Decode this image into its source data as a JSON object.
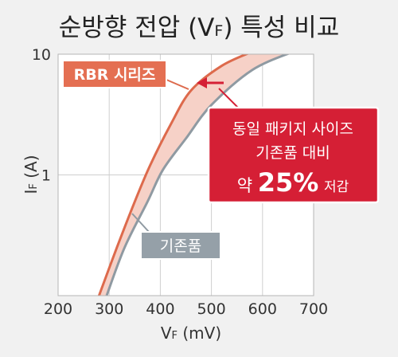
{
  "chart_data": {
    "type": "line",
    "title": "순방향 전압 (VF) 특성 비교",
    "title_parts": {
      "before": "순방향 전압 (V",
      "sub": "F",
      "after": ") 특성 비교"
    },
    "xlabel": {
      "main": "V",
      "sub": "F",
      "unit": " (mV)"
    },
    "ylabel": {
      "main": "I",
      "sub": "F",
      "unit": " (A)"
    },
    "x_ticks": [
      "200",
      "300",
      "400",
      "500",
      "600",
      "700"
    ],
    "x_tick_values": [
      200,
      300,
      400,
      500,
      600,
      700
    ],
    "y_ticks": [
      "1",
      "10"
    ],
    "y_tick_values": [
      1,
      10
    ],
    "xlim": [
      200,
      700
    ],
    "ylim": [
      0.1,
      10
    ],
    "y_scale": "log",
    "grid": true,
    "series": [
      {
        "name": "RBR 시리즈",
        "color": "#dd6a4c",
        "label_bg": "#e46f52",
        "points": [
          [
            280,
            0.1
          ],
          [
            315,
            0.25
          ],
          [
            350,
            0.6
          ],
          [
            380,
            1.2
          ],
          [
            420,
            2.6
          ],
          [
            460,
            5.0
          ],
          [
            520,
            8.0
          ],
          [
            580,
            10.5
          ]
        ]
      },
      {
        "name": "기존품",
        "color": "#8f9aa2",
        "label_bg": "#95a0a8",
        "points": [
          [
            295,
            0.1
          ],
          [
            330,
            0.25
          ],
          [
            375,
            0.6
          ],
          [
            405,
            1.1
          ],
          [
            450,
            2.0
          ],
          [
            500,
            3.8
          ],
          [
            580,
            7.4
          ],
          [
            660,
            10.5
          ]
        ]
      }
    ],
    "band_fill": "#f6d1c7",
    "callout": {
      "bg": "#d51f35",
      "lines": [
        "동일 패키지 사이즈",
        "기존품 대비"
      ],
      "prefix": "약",
      "big_value": "25%",
      "suffix": "저감"
    }
  }
}
